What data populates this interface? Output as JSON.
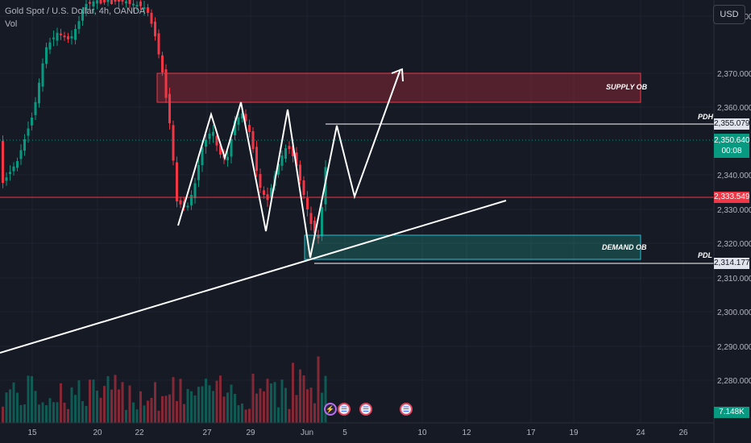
{
  "legend": {
    "symbol_line": "Gold Spot / U.S. Dollar, 4h, OANDA",
    "volume_label": "Vol"
  },
  "currency_button": "USD",
  "price_axis": {
    "ticks": [
      "2,380.000",
      "2,370.000",
      "2,360.000",
      "2,340.000",
      "2,330.000",
      "2,320.000",
      "2,310.000",
      "2,300.000",
      "2,290.000",
      "2,280.000"
    ],
    "tags": {
      "pdh": "2,355.079",
      "last_price": "2,350.640",
      "countdown": "00:08",
      "level": "2,333.549",
      "pdl": "2,314.177",
      "volume": "7.148K"
    }
  },
  "time_axis": {
    "ticks": [
      "15",
      "20",
      "22",
      "27",
      "29",
      "Jun",
      "5",
      "10",
      "12",
      "17",
      "19",
      "24",
      "26"
    ]
  },
  "annotations": {
    "supply": "SUPPLY OB",
    "demand": "DEMAND OB",
    "pdh": "PDH",
    "pdl": "PDL"
  },
  "events": [
    {
      "icon": "lightning-icon"
    },
    {
      "icon": "us-flag-icon"
    },
    {
      "icon": "us-flag-icon"
    },
    {
      "icon": "us-flag-icon"
    }
  ],
  "colors": {
    "background": "#161a25",
    "up": "#089981",
    "down": "#f23645",
    "supply_zone": "#f23645",
    "demand_zone": "#22ab94",
    "drawing": "#ffffff"
  }
}
